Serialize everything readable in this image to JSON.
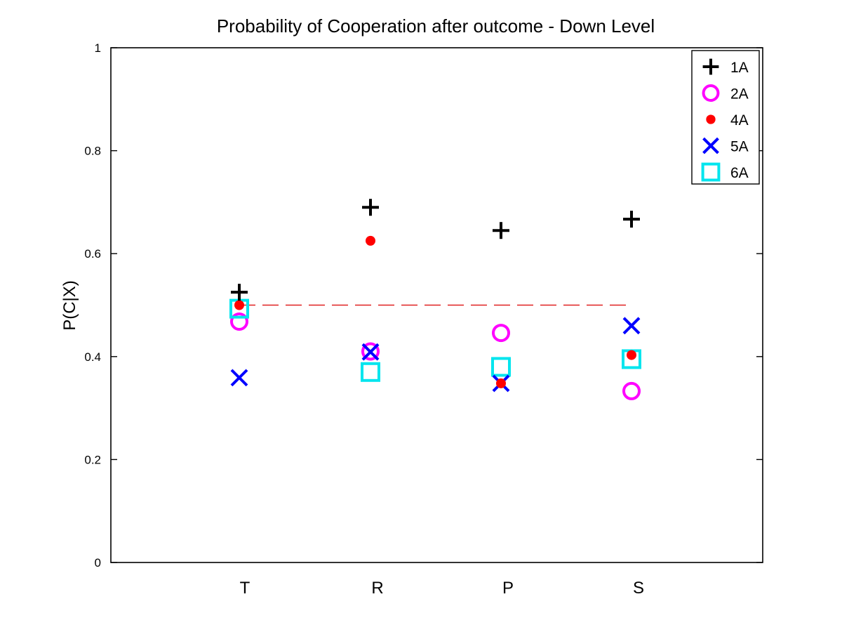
{
  "chart_data": {
    "type": "scatter",
    "title": "Probability of Cooperation after outcome - Down Level",
    "xlabel": "",
    "ylabel": "P(C|X)",
    "categories": [
      "T",
      "R",
      "P",
      "S"
    ],
    "ylim": [
      0,
      1
    ],
    "yticks": [
      0,
      0.2,
      0.4,
      0.6,
      0.8,
      1
    ],
    "ytick_labels": [
      "0",
      "0.2",
      "0.4",
      "0.6",
      "0.8",
      "1"
    ],
    "grid": false,
    "legend_position": "top-right",
    "series": [
      {
        "name": "1A",
        "marker": "plus",
        "color": "#000000",
        "values": [
          0.525,
          0.69,
          0.645,
          0.667
        ]
      },
      {
        "name": "2A",
        "marker": "circle",
        "color": "#ff00ff",
        "values": [
          0.468,
          0.41,
          0.446,
          0.333
        ]
      },
      {
        "name": "4A",
        "marker": "dot",
        "color": "#ff0000",
        "values": [
          0.5,
          0.625,
          0.348,
          0.403
        ]
      },
      {
        "name": "5A",
        "marker": "x",
        "color": "#0000ff",
        "values": [
          0.359,
          0.409,
          0.348,
          0.46
        ]
      },
      {
        "name": "6A",
        "marker": "square",
        "color": "#00e5ee",
        "values": [
          0.493,
          0.37,
          0.38,
          0.395
        ]
      }
    ],
    "reference_line": {
      "y": 0.5,
      "color": "#e02020",
      "style": "dashed"
    }
  }
}
